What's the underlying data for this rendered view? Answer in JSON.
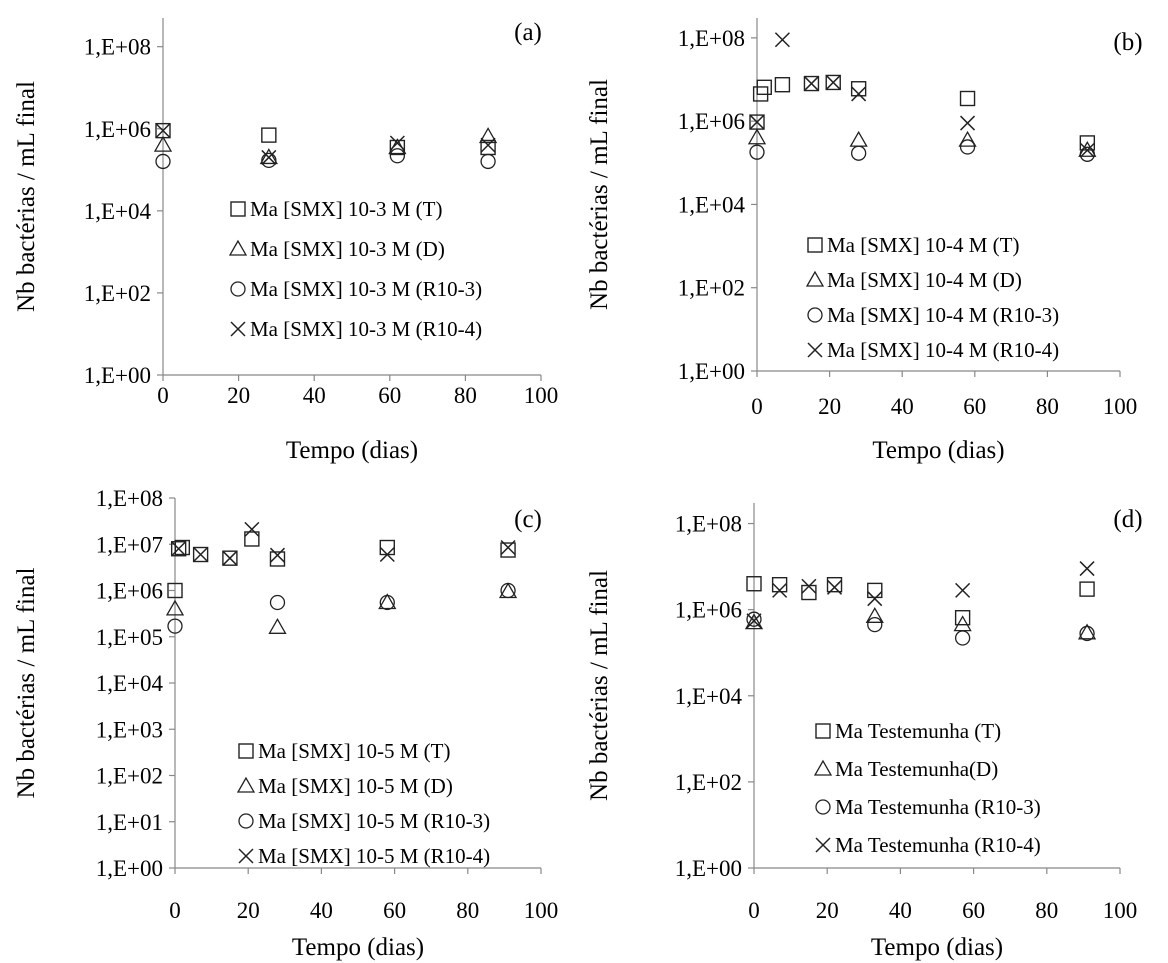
{
  "chart_data": [
    {
      "panel_label": "(a)",
      "type": "scatter",
      "xlabel": "Tempo (dias)",
      "ylabel": "Nb bactérias / mL final",
      "xlim": [
        0,
        100
      ],
      "ylim": [
        1,
        500000000
      ],
      "yscale": "log",
      "xticks": [
        "0",
        "20",
        "40",
        "60",
        "80",
        "100"
      ],
      "yticks": [
        {
          "label": "1,E+00",
          "v": 1
        },
        {
          "label": "1,E+02",
          "v": 100
        },
        {
          "label": "1,E+04",
          "v": 10000
        },
        {
          "label": "1,E+06",
          "v": 1000000
        },
        {
          "label": "1,E+08",
          "v": 100000000
        }
      ],
      "grid": false,
      "legend_position": "center-left",
      "series": [
        {
          "name": "Ma [SMX] 10-3 M (T)",
          "marker": "square",
          "points": [
            [
              0,
              900000
            ],
            [
              28,
              700000
            ],
            [
              62,
              350000
            ],
            [
              86,
              350000
            ]
          ]
        },
        {
          "name": "Ma [SMX] 10-3 M (D)",
          "marker": "triangle",
          "points": [
            [
              0,
              400000
            ],
            [
              28,
              200000
            ],
            [
              62,
              350000
            ],
            [
              86,
              650000
            ]
          ]
        },
        {
          "name": "Ma [SMX] 10-3 M (R10-3)",
          "marker": "circle",
          "points": [
            [
              0,
              160000
            ],
            [
              28,
              170000
            ],
            [
              62,
              220000
            ],
            [
              86,
              160000
            ]
          ]
        },
        {
          "name": "Ma [SMX] 10-3 M (R10-4)",
          "marker": "x",
          "points": [
            [
              0,
              900000
            ],
            [
              28,
              200000
            ],
            [
              62,
              450000
            ],
            [
              86,
              400000
            ]
          ]
        }
      ]
    },
    {
      "panel_label": "(b)",
      "type": "scatter",
      "xlabel": "Tempo (dias)",
      "ylabel": "Nb bactérias / mL final",
      "xlim": [
        0,
        100
      ],
      "ylim": [
        1,
        300000000
      ],
      "yscale": "log",
      "xticks": [
        "0",
        "20",
        "40",
        "60",
        "80",
        "100"
      ],
      "yticks": [
        {
          "label": "1,E+00",
          "v": 1
        },
        {
          "label": "1,E+02",
          "v": 100
        },
        {
          "label": "1,E+04",
          "v": 10000
        },
        {
          "label": "1,E+06",
          "v": 1000000
        },
        {
          "label": "1,E+08",
          "v": 100000000
        }
      ],
      "grid": false,
      "legend_position": "bottom-left",
      "series": [
        {
          "name": "Ma [SMX] 10-4 M (T)",
          "marker": "square",
          "points": [
            [
              0,
              950000
            ],
            [
              1,
              4500000
            ],
            [
              2,
              6500000
            ],
            [
              7,
              7500000
            ],
            [
              15,
              8000000
            ],
            [
              21,
              8500000
            ],
            [
              28,
              6000000
            ],
            [
              58,
              3500000
            ],
            [
              91,
              300000
            ]
          ]
        },
        {
          "name": "Ma [SMX] 10-4 M (D)",
          "marker": "triangle",
          "points": [
            [
              0,
              400000
            ],
            [
              28,
              350000
            ],
            [
              58,
              350000
            ],
            [
              91,
              200000
            ]
          ]
        },
        {
          "name": "Ma [SMX] 10-4 M (R10-3)",
          "marker": "circle",
          "points": [
            [
              0,
              180000
            ],
            [
              28,
              170000
            ],
            [
              58,
              240000
            ],
            [
              91,
              160000
            ]
          ]
        },
        {
          "name": "Ma [SMX] 10-4 M (R10-4)",
          "marker": "x",
          "points": [
            [
              0,
              950000
            ],
            [
              7,
              90000000
            ],
            [
              15,
              8000000
            ],
            [
              21,
              8500000
            ],
            [
              28,
              4500000
            ],
            [
              58,
              900000
            ],
            [
              91,
              200000
            ]
          ]
        }
      ]
    },
    {
      "panel_label": "(c)",
      "type": "scatter",
      "xlabel": "Tempo (dias)",
      "ylabel": "Nb bactérias / mL final",
      "xlim": [
        0,
        100
      ],
      "ylim": [
        1,
        100000000
      ],
      "yscale": "log",
      "xticks": [
        "0",
        "20",
        "40",
        "60",
        "80",
        "100"
      ],
      "yticks": [
        {
          "label": "1,E+00",
          "v": 1
        },
        {
          "label": "1,E+01",
          "v": 10
        },
        {
          "label": "1,E+02",
          "v": 100
        },
        {
          "label": "1,E+03",
          "v": 1000
        },
        {
          "label": "1,E+04",
          "v": 10000
        },
        {
          "label": "1,E+05",
          "v": 100000
        },
        {
          "label": "1,E+06",
          "v": 1000000
        },
        {
          "label": "1,E+07",
          "v": 10000000
        },
        {
          "label": "1,E+08",
          "v": 100000000
        }
      ],
      "grid": false,
      "legend_position": "bottom-center",
      "series": [
        {
          "name": "Ma [SMX] 10-5 M (T)",
          "marker": "square",
          "points": [
            [
              0,
              1000000
            ],
            [
              1,
              8000000
            ],
            [
              2,
              8500000
            ],
            [
              7,
              6000000
            ],
            [
              15,
              5000000
            ],
            [
              21,
              13000000
            ],
            [
              28,
              4800000
            ],
            [
              58,
              8500000
            ],
            [
              91,
              7500000
            ]
          ]
        },
        {
          "name": "Ma [SMX] 10-5 M (D)",
          "marker": "triangle",
          "points": [
            [
              0,
              400000
            ],
            [
              28,
              160000
            ],
            [
              58,
              550000
            ],
            [
              91,
              950000
            ]
          ]
        },
        {
          "name": "Ma [SMX] 10-5 M (R10-3)",
          "marker": "circle",
          "points": [
            [
              0,
              170000
            ],
            [
              28,
              550000
            ],
            [
              58,
              550000
            ],
            [
              91,
              1000000
            ]
          ]
        },
        {
          "name": "Ma [SMX] 10-5 M (R10-4)",
          "marker": "x",
          "points": [
            [
              1,
              8000000
            ],
            [
              7,
              6000000
            ],
            [
              15,
              5000000
            ],
            [
              21,
              21000000
            ],
            [
              28,
              5800000
            ],
            [
              58,
              6000000
            ],
            [
              91,
              8500000
            ]
          ]
        }
      ]
    },
    {
      "panel_label": "(d)",
      "type": "scatter",
      "xlabel": "Tempo (dias)",
      "ylabel": "Nb bactérias / mL final",
      "xlim": [
        0,
        100
      ],
      "ylim": [
        1,
        300000000
      ],
      "yscale": "log",
      "xticks": [
        "0",
        "20",
        "40",
        "60",
        "80",
        "100"
      ],
      "yticks": [
        {
          "label": "1,E+00",
          "v": 1
        },
        {
          "label": "1,E+02",
          "v": 100
        },
        {
          "label": "1,E+04",
          "v": 10000
        },
        {
          "label": "1,E+06",
          "v": 1000000
        },
        {
          "label": "1,E+08",
          "v": 100000000
        }
      ],
      "grid": false,
      "legend_position": "bottom-center",
      "series": [
        {
          "name": "Ma Testemunha (T)",
          "marker": "square",
          "points": [
            [
              0,
              4000000
            ],
            [
              7,
              3800000
            ],
            [
              15,
              2500000
            ],
            [
              22,
              3800000
            ],
            [
              33,
              2800000
            ],
            [
              57,
              650000
            ],
            [
              91,
              3000000
            ]
          ]
        },
        {
          "name": "Ma Testemunha(D)",
          "marker": "triangle",
          "points": [
            [
              0,
              500000
            ],
            [
              33,
              700000
            ],
            [
              57,
              450000
            ],
            [
              91,
              290000
            ]
          ]
        },
        {
          "name": "Ma Testemunha (R10-3)",
          "marker": "circle",
          "points": [
            [
              0,
              600000
            ],
            [
              33,
              450000
            ],
            [
              57,
              220000
            ],
            [
              91,
              280000
            ]
          ]
        },
        {
          "name": "Ma Testemunha (R10-4)",
          "marker": "x",
          "points": [
            [
              0,
              550000
            ],
            [
              7,
              2800000
            ],
            [
              15,
              3500000
            ],
            [
              22,
              3300000
            ],
            [
              33,
              1800000
            ],
            [
              57,
              2800000
            ],
            [
              91,
              9000000
            ]
          ]
        }
      ]
    }
  ]
}
